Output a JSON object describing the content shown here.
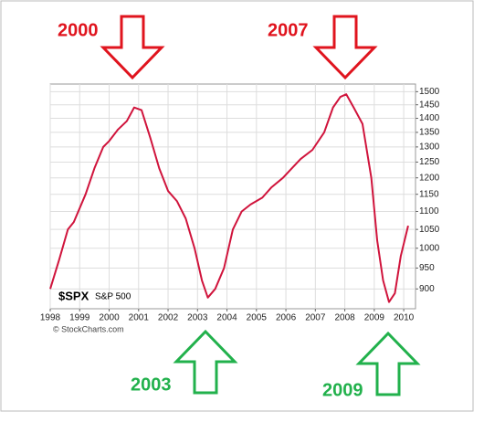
{
  "chart_data": {
    "type": "line",
    "symbol": "$SPX",
    "symbol_name": "S&P 500",
    "credit": "© StockCharts.com",
    "annotations": [
      "2000",
      "2007",
      "2003",
      "2009"
    ],
    "log_scale": true,
    "grid": true,
    "xlim": [
      1998,
      2010.4
    ],
    "xticks": [
      1998,
      1999,
      2000,
      2001,
      2002,
      2003,
      2004,
      2005,
      2006,
      2007,
      2008,
      2009,
      2010
    ],
    "ylim": [
      855,
      1530
    ],
    "yticks": [
      900,
      950,
      1000,
      1050,
      1100,
      1150,
      1200,
      1250,
      1300,
      1350,
      1400,
      1450,
      1500
    ],
    "x": [
      1998.0,
      1998.3,
      1998.6,
      1998.8,
      1999.2,
      1999.5,
      1999.8,
      2000.0,
      2000.3,
      2000.6,
      2000.85,
      2001.1,
      2001.4,
      2001.7,
      2002.0,
      2002.3,
      2002.6,
      2002.9,
      2003.15,
      2003.35,
      2003.6,
      2003.9,
      2004.2,
      2004.5,
      2004.8,
      2005.2,
      2005.5,
      2005.9,
      2006.2,
      2006.5,
      2006.9,
      2007.3,
      2007.6,
      2007.85,
      2008.05,
      2008.3,
      2008.6,
      2008.9,
      2009.1,
      2009.3,
      2009.5,
      2009.7,
      2009.9,
      2010.15
    ],
    "series": [
      {
        "name": "S&P 500",
        "color": "#d0143c",
        "values": [
          900,
          970,
          1050,
          1070,
          1150,
          1230,
          1300,
          1320,
          1360,
          1390,
          1440,
          1430,
          1330,
          1230,
          1160,
          1130,
          1080,
          1000,
          920,
          880,
          900,
          950,
          1050,
          1100,
          1120,
          1140,
          1170,
          1200,
          1230,
          1260,
          1290,
          1350,
          1440,
          1480,
          1490,
          1440,
          1380,
          1200,
          1020,
          920,
          870,
          890,
          980,
          1060
        ]
      }
    ]
  }
}
